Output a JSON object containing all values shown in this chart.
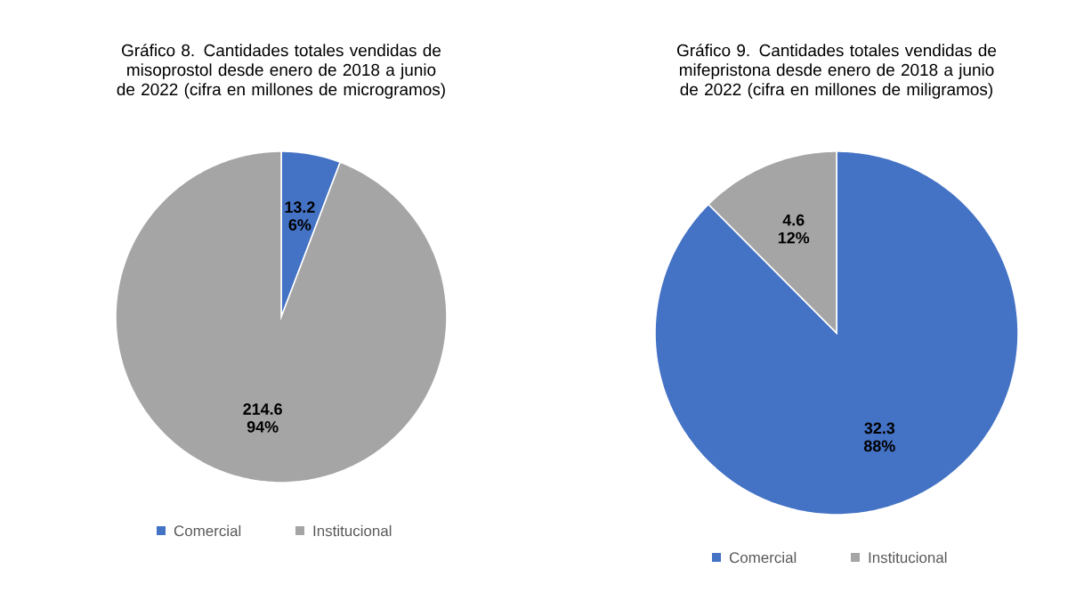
{
  "chart_data": [
    {
      "type": "pie",
      "title": "Gráfico 8. Cantidades totales vendidas de misoprostol desde enero de 2018 a junio de 2022 (cifra en millones de microgramos)",
      "categories": [
        "Comercial",
        "Institucional"
      ],
      "values": [
        13.2,
        214.6
      ],
      "colors": [
        "#4472c4",
        "#a5a5a5"
      ],
      "value_labels": [
        "13.2 6%",
        "214.6 94%"
      ],
      "legend": "bottom"
    },
    {
      "type": "pie",
      "title": "Gráfico 9. Cantidades totales vendidas de mifepristona desde enero de 2018 a junio de 2022 (cifra en millones de miligramos)",
      "categories": [
        "Comercial",
        "Institucional"
      ],
      "values": [
        32.3,
        4.6
      ],
      "colors": [
        "#4472c4",
        "#a5a5a5"
      ],
      "value_labels": [
        "32.3 88%",
        "4.6 12%"
      ],
      "legend": "bottom"
    }
  ]
}
